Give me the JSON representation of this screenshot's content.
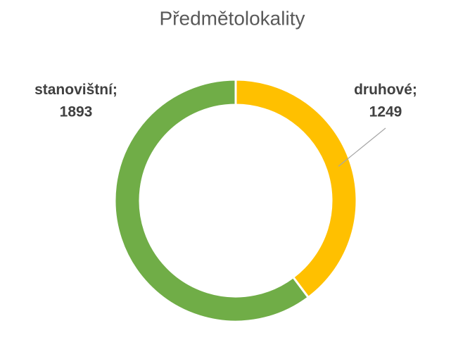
{
  "chart_data": {
    "type": "donut",
    "title": "Předmětolokality",
    "categories": [
      "druhové",
      "stanovištní"
    ],
    "values": [
      1249,
      1893
    ],
    "colors": [
      "#ffc000",
      "#70ad47"
    ],
    "label_separator": ";"
  }
}
